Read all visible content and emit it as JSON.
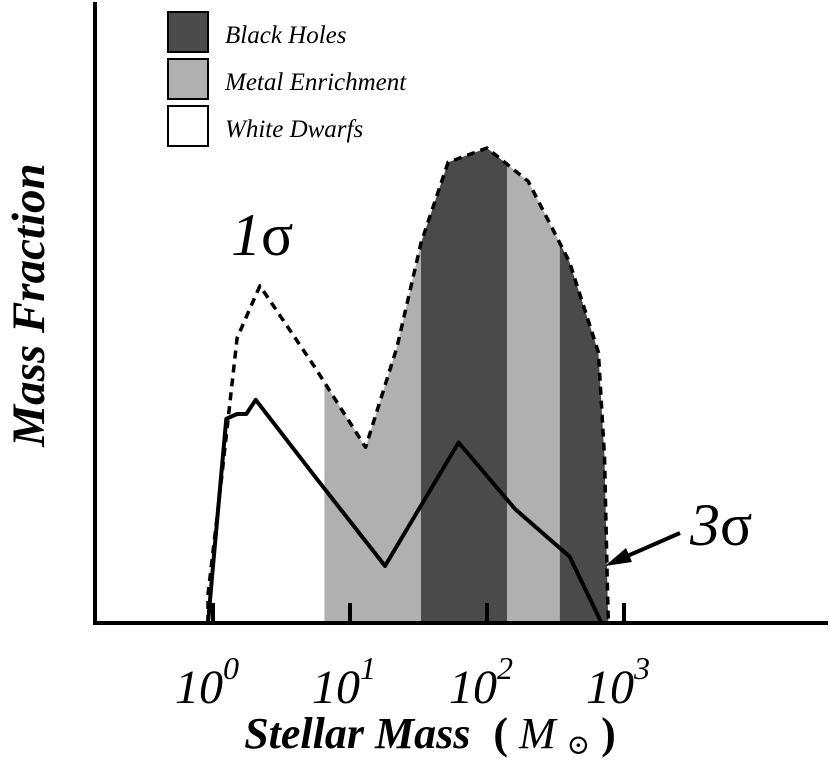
{
  "chart_data": {
    "type": "area",
    "xscale": "log",
    "xlim": [
      0.8,
      1000
    ],
    "ylim": [
      0,
      1
    ],
    "grid": false,
    "legend_position": "top-left",
    "ylabel": "Mass Fraction",
    "xlabel": {
      "main": "Stellar Mass",
      "open": "(",
      "symbol": "M",
      "sub": "⊙",
      "close": ")"
    },
    "x_ticks": [
      {
        "base": "10",
        "exp": "0",
        "value": 1
      },
      {
        "base": "10",
        "exp": "1",
        "value": 10
      },
      {
        "base": "10",
        "exp": "2",
        "value": 100
      },
      {
        "base": "10",
        "exp": "3",
        "value": 1000
      }
    ],
    "legend": [
      {
        "label": "Black Holes",
        "color": "#4a4a4a"
      },
      {
        "label": "Metal Enrichment",
        "color": "#b0b0b0"
      },
      {
        "label": "White Dwarfs",
        "color": "#ffffff"
      }
    ],
    "bands": [
      {
        "legend_index": 1,
        "x0": 6.5,
        "x1": 33
      },
      {
        "legend_index": 0,
        "x0": 33,
        "x1": 140
      },
      {
        "legend_index": 1,
        "x0": 140,
        "x1": 340
      },
      {
        "legend_index": 0,
        "x0": 340,
        "x1": 1000
      }
    ],
    "series": [
      {
        "style": "dashed",
        "label": {
          "base": "1",
          "sigma": "σ"
        },
        "points": [
          [
            0.92,
            0
          ],
          [
            0.92,
            0.06
          ],
          [
            1.15,
            0.3
          ],
          [
            1.5,
            0.6
          ],
          [
            2.2,
            0.71
          ],
          [
            5.5,
            0.54
          ],
          [
            13,
            0.37
          ],
          [
            22,
            0.58
          ],
          [
            33,
            0.8
          ],
          [
            52,
            0.97
          ],
          [
            100,
            1.0
          ],
          [
            200,
            0.93
          ],
          [
            400,
            0.76
          ],
          [
            650,
            0.57
          ],
          [
            720,
            0.35
          ],
          [
            760,
            0.05
          ],
          [
            770,
            0
          ]
        ]
      },
      {
        "style": "solid",
        "label": {
          "base": "3",
          "sigma": "σ"
        },
        "points": [
          [
            0.92,
            0
          ],
          [
            1.0,
            0.12
          ],
          [
            1.25,
            0.43
          ],
          [
            1.5,
            0.44
          ],
          [
            1.75,
            0.44
          ],
          [
            2.05,
            0.47
          ],
          [
            5.5,
            0.31
          ],
          [
            18,
            0.12
          ],
          [
            62,
            0.38
          ],
          [
            160,
            0.24
          ],
          [
            400,
            0.14
          ],
          [
            660,
            0.01
          ],
          [
            680,
            0
          ]
        ]
      }
    ]
  }
}
